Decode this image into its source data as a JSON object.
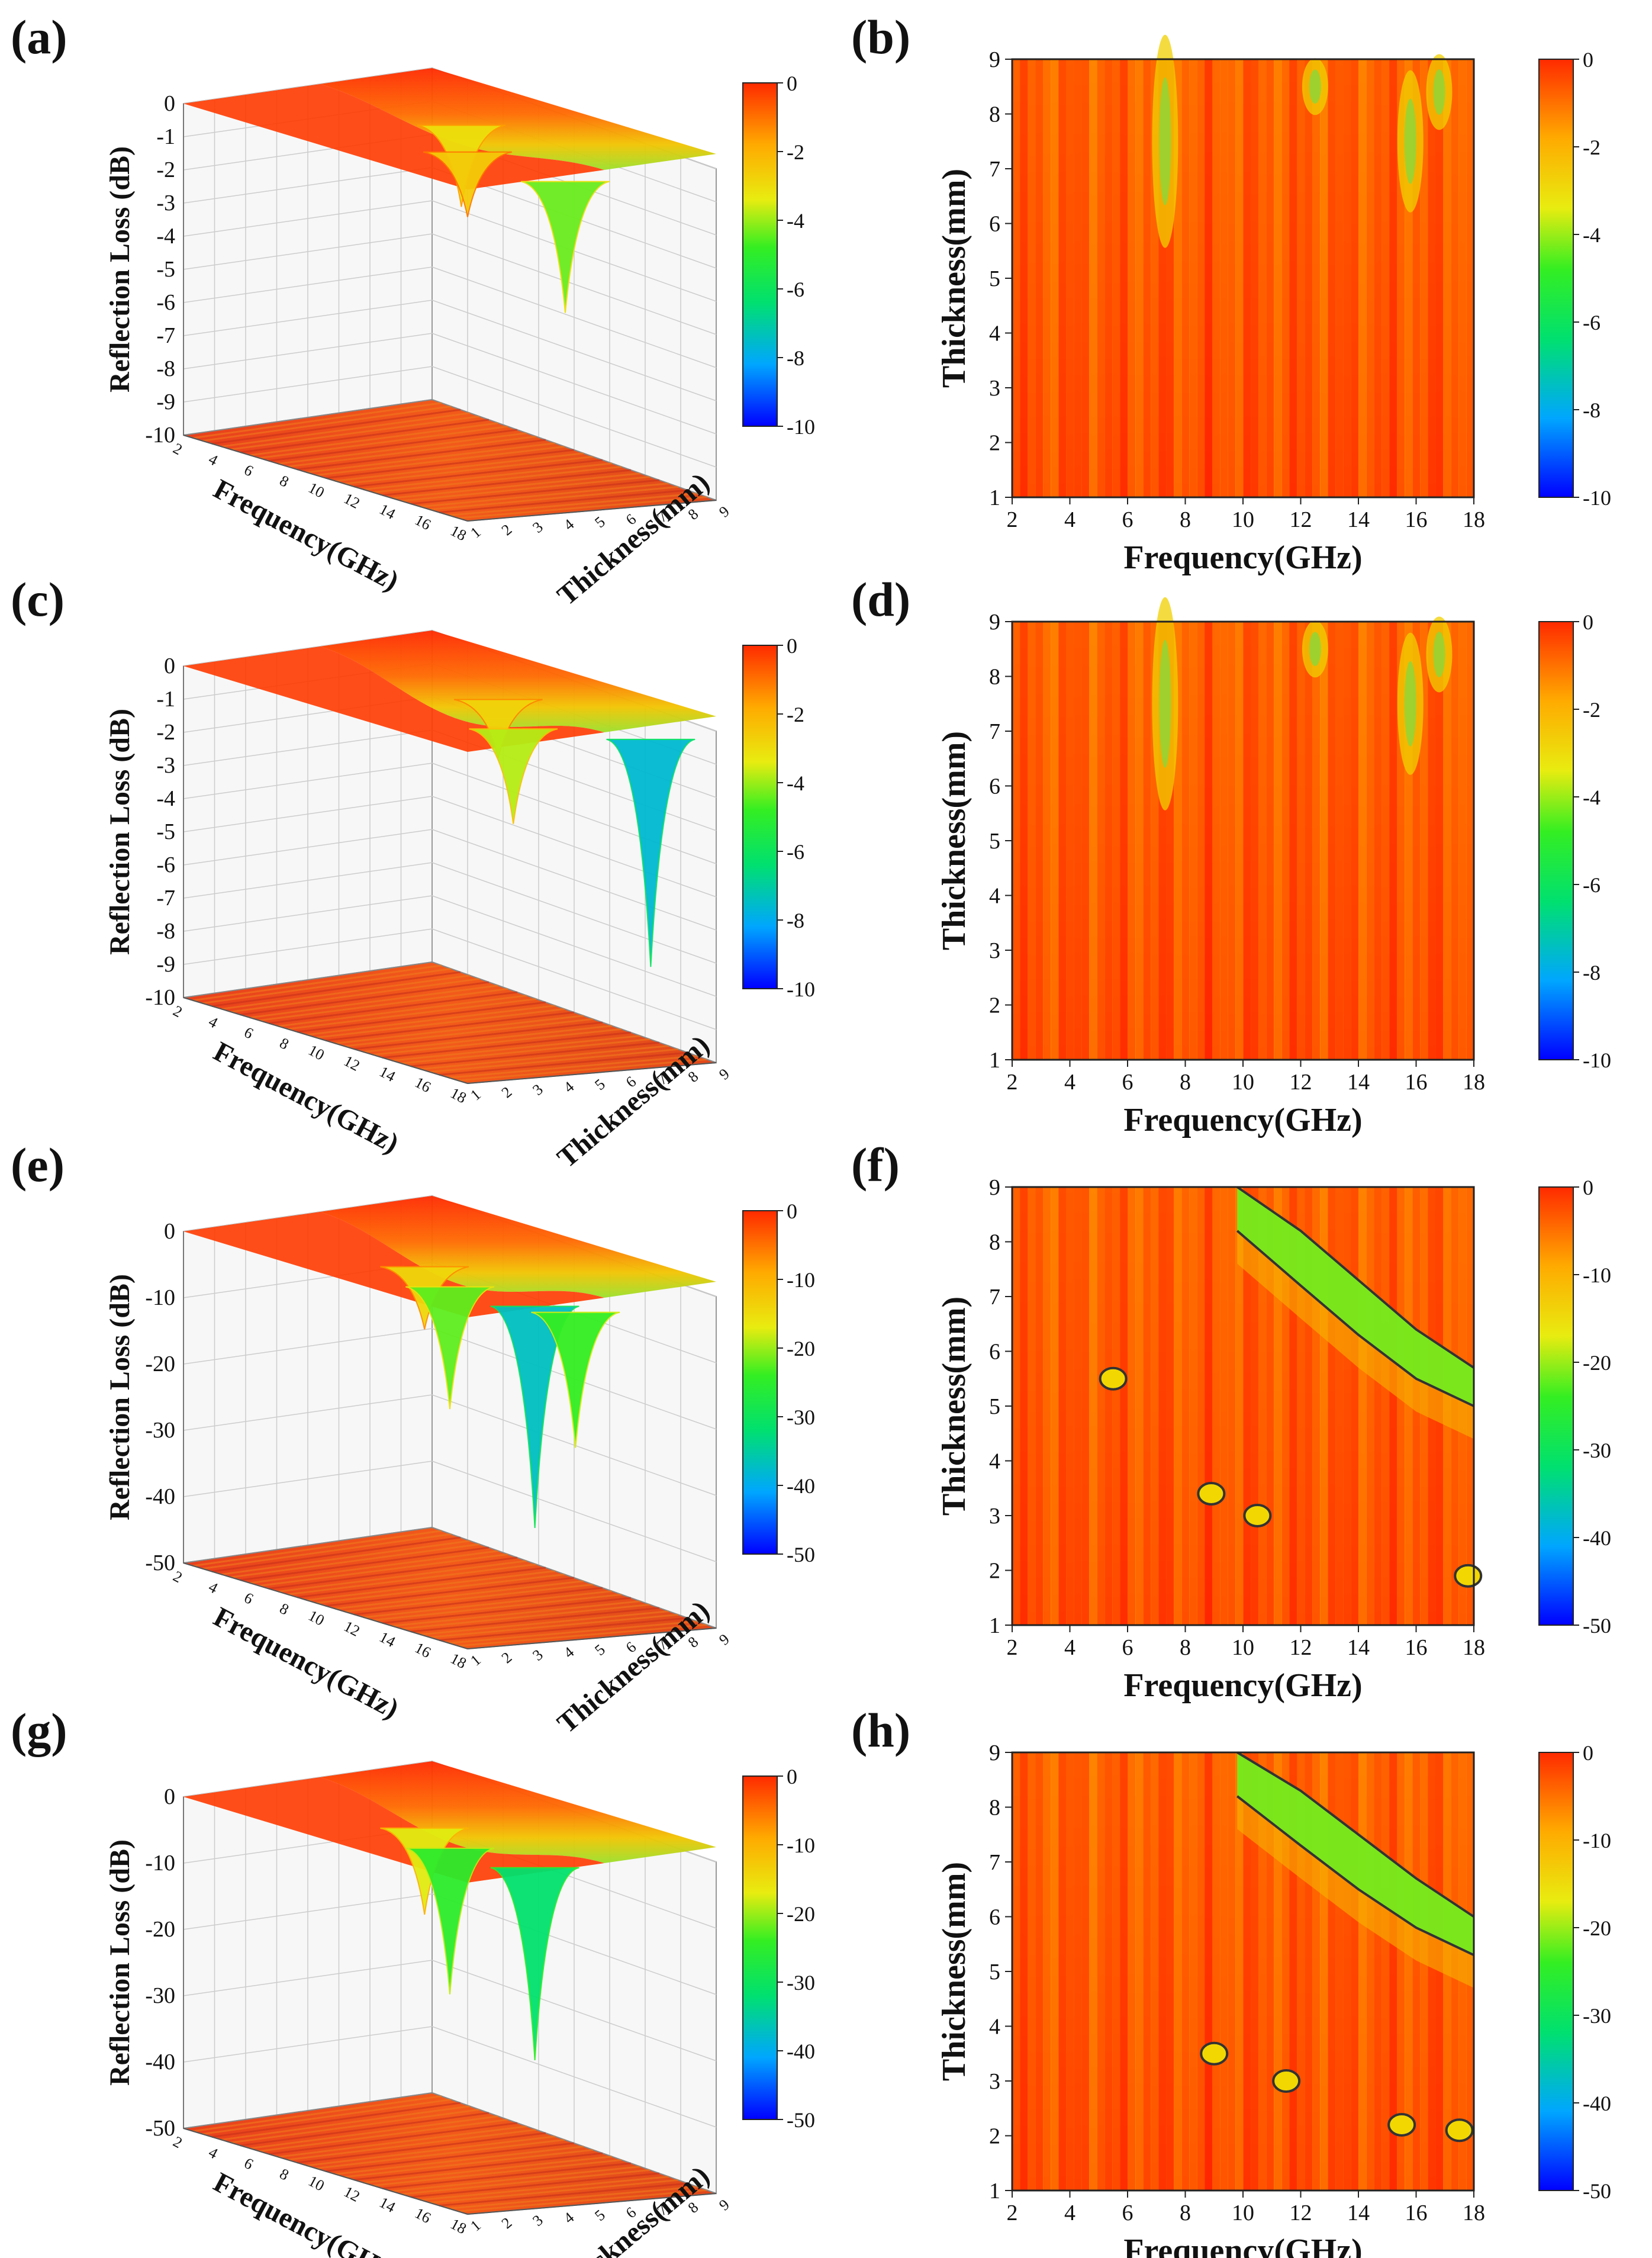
{
  "chart_data": [
    {
      "panel": "(a)",
      "type": "surface3d",
      "title": "",
      "xlabel": "Frequency(GHz)",
      "ylabel": "Thickness(mm)",
      "zlabel": "Reflection Loss (dB)",
      "x_ticks": [
        2,
        4,
        6,
        8,
        10,
        12,
        14,
        16,
        18
      ],
      "y_ticks": [
        1,
        2,
        3,
        4,
        5,
        6,
        7,
        8,
        9
      ],
      "z_ticks": [
        0,
        -1,
        -2,
        -3,
        -4,
        -5,
        -6,
        -7,
        -8,
        -9,
        -10
      ],
      "zlim": [
        -10,
        0
      ],
      "colorbar": {
        "ticks": [
          0,
          -2,
          -4,
          -6,
          -8,
          -10
        ],
        "range": [
          -10,
          0
        ]
      },
      "min_rl": -4.5,
      "dips": [
        {
          "freq": 7.5,
          "thick": 7,
          "rl": -3.0
        },
        {
          "freq": 11,
          "thick": 5,
          "rl": -2.5
        },
        {
          "freq": 16.5,
          "thick": 5,
          "rl": -4.5
        }
      ]
    },
    {
      "panel": "(b)",
      "type": "heatmap",
      "title": "",
      "xlabel": "Frequency(GHz)",
      "ylabel": "Thickness(mm)",
      "x_ticks": [
        2,
        4,
        6,
        8,
        10,
        12,
        14,
        16,
        18
      ],
      "y_ticks": [
        1,
        2,
        3,
        4,
        5,
        6,
        7,
        8,
        9
      ],
      "xlim": [
        2,
        18
      ],
      "ylim": [
        1,
        9
      ],
      "colorbar": {
        "ticks": [
          0,
          -2,
          -4,
          -6,
          -8,
          -10
        ],
        "range": [
          -10,
          0
        ]
      },
      "min_rl": -4.5
    },
    {
      "panel": "(c)",
      "type": "surface3d",
      "title": "",
      "xlabel": "Frequency(GHz)",
      "ylabel": "Thickness(mm)",
      "zlabel": "Reflection Loss (dB)",
      "x_ticks": [
        2,
        4,
        6,
        8,
        10,
        12,
        14,
        16,
        18
      ],
      "y_ticks": [
        1,
        2,
        3,
        4,
        5,
        6,
        7,
        8,
        9
      ],
      "z_ticks": [
        0,
        -1,
        -2,
        -3,
        -4,
        -5,
        -6,
        -7,
        -8,
        -9,
        -10
      ],
      "zlim": [
        -10,
        0
      ],
      "colorbar": {
        "ticks": [
          0,
          -2,
          -4,
          -6,
          -8,
          -10
        ],
        "range": [
          -10,
          0
        ]
      },
      "min_rl": -7.8,
      "dips": [
        {
          "freq": 8,
          "thick": 8,
          "rl": -2.7
        },
        {
          "freq": 12,
          "thick": 6,
          "rl": -3.8
        },
        {
          "freq": 15.8,
          "thick": 8.5,
          "rl": -7.8
        }
      ]
    },
    {
      "panel": "(d)",
      "type": "heatmap",
      "title": "",
      "xlabel": "Frequency(GHz)",
      "ylabel": "Thickness(mm)",
      "x_ticks": [
        2,
        4,
        6,
        8,
        10,
        12,
        14,
        16,
        18
      ],
      "y_ticks": [
        1,
        2,
        3,
        4,
        5,
        6,
        7,
        8,
        9
      ],
      "xlim": [
        2,
        18
      ],
      "ylim": [
        1,
        9
      ],
      "colorbar": {
        "ticks": [
          0,
          -2,
          -4,
          -6,
          -8,
          -10
        ],
        "range": [
          -10,
          0
        ]
      },
      "min_rl": -7.8
    },
    {
      "panel": "(e)",
      "type": "surface3d",
      "title": "",
      "xlabel": "Frequency(GHz)",
      "ylabel": "Thickness(mm)",
      "zlabel": "Reflection Loss (dB)",
      "x_ticks": [
        2,
        4,
        6,
        8,
        10,
        12,
        14,
        16,
        18
      ],
      "y_ticks": [
        1,
        2,
        3,
        4,
        5,
        6,
        7,
        8,
        9
      ],
      "z_ticks": [
        0,
        -10,
        -20,
        -30,
        -40,
        -50
      ],
      "zlim": [
        -50,
        0
      ],
      "colorbar": {
        "ticks": [
          0,
          -10,
          -20,
          -30,
          -40,
          -50
        ],
        "range": [
          -50,
          0
        ]
      },
      "min_rl": -38,
      "dips": [
        {
          "freq": 7,
          "thick": 6,
          "rl": -14
        },
        {
          "freq": 10,
          "thick": 5,
          "rl": -23
        },
        {
          "freq": 14,
          "thick": 5.5,
          "rl": -38
        },
        {
          "freq": 15.5,
          "thick": 6,
          "rl": -25
        }
      ]
    },
    {
      "panel": "(f)",
      "type": "heatmap",
      "title": "",
      "xlabel": "Frequency(GHz)",
      "ylabel": "Thickness(mm)",
      "x_ticks": [
        2,
        4,
        6,
        8,
        10,
        12,
        14,
        16,
        18
      ],
      "y_ticks": [
        1,
        2,
        3,
        4,
        5,
        6,
        7,
        8,
        9
      ],
      "xlim": [
        2,
        18
      ],
      "ylim": [
        1,
        9
      ],
      "colorbar": {
        "ticks": [
          0,
          -10,
          -20,
          -30,
          -40,
          -50
        ],
        "range": [
          -50,
          0
        ]
      },
      "contour_level": -10,
      "band": {
        "upper": [
          [
            9.8,
            9
          ],
          [
            12,
            8.2
          ],
          [
            14,
            7.3
          ],
          [
            16,
            6.4
          ],
          [
            18,
            5.7
          ]
        ],
        "lower": [
          [
            9.8,
            8.2
          ],
          [
            12,
            7.2
          ],
          [
            14,
            6.3
          ],
          [
            16,
            5.5
          ],
          [
            18,
            5.0
          ]
        ]
      },
      "islands": [
        [
          5.5,
          5.5
        ],
        [
          8.9,
          3.4
        ],
        [
          10.5,
          3.0
        ],
        [
          17.8,
          1.9
        ]
      ],
      "min_rl": -38
    },
    {
      "panel": "(g)",
      "type": "surface3d",
      "title": "",
      "xlabel": "Frequency(GHz)",
      "ylabel": "Thickness(mm)",
      "zlabel": "Reflection Loss (dB)",
      "x_ticks": [
        2,
        4,
        6,
        8,
        10,
        12,
        14,
        16,
        18
      ],
      "y_ticks": [
        1,
        2,
        3,
        4,
        5,
        6,
        7,
        8,
        9
      ],
      "z_ticks": [
        0,
        -10,
        -20,
        -30,
        -40,
        -50
      ],
      "zlim": [
        -50,
        0
      ],
      "colorbar": {
        "ticks": [
          0,
          -10,
          -20,
          -30,
          -40,
          -50
        ],
        "range": [
          -50,
          0
        ]
      },
      "min_rl": -33,
      "dips": [
        {
          "freq": 7,
          "thick": 6,
          "rl": -17
        },
        {
          "freq": 10,
          "thick": 5,
          "rl": -26
        },
        {
          "freq": 14,
          "thick": 5.5,
          "rl": -33
        }
      ]
    },
    {
      "panel": "(h)",
      "type": "heatmap",
      "title": "",
      "xlabel": "Frequency(GHz)",
      "ylabel": "Thickness(mm)",
      "x_ticks": [
        2,
        4,
        6,
        8,
        10,
        12,
        14,
        16,
        18
      ],
      "y_ticks": [
        1,
        2,
        3,
        4,
        5,
        6,
        7,
        8,
        9
      ],
      "xlim": [
        2,
        18
      ],
      "ylim": [
        1,
        9
      ],
      "colorbar": {
        "ticks": [
          0,
          -10,
          -20,
          -30,
          -40,
          -50
        ],
        "range": [
          -50,
          0
        ]
      },
      "contour_level": -10,
      "band": {
        "upper": [
          [
            9.8,
            9
          ],
          [
            12,
            8.3
          ],
          [
            14,
            7.5
          ],
          [
            16,
            6.7
          ],
          [
            18,
            6.0
          ]
        ],
        "lower": [
          [
            9.8,
            8.2
          ],
          [
            12,
            7.3
          ],
          [
            14,
            6.5
          ],
          [
            16,
            5.8
          ],
          [
            18,
            5.3
          ]
        ]
      },
      "islands": [
        [
          9.0,
          3.5
        ],
        [
          11.5,
          3.0
        ],
        [
          15.5,
          2.2
        ],
        [
          17.5,
          2.1
        ]
      ],
      "min_rl": -33
    }
  ],
  "colormap": [
    "#0000ff",
    "#00a6ff",
    "#00e070",
    "#33ee22",
    "#e8ec10",
    "#ffaa00",
    "#ff2a00"
  ]
}
